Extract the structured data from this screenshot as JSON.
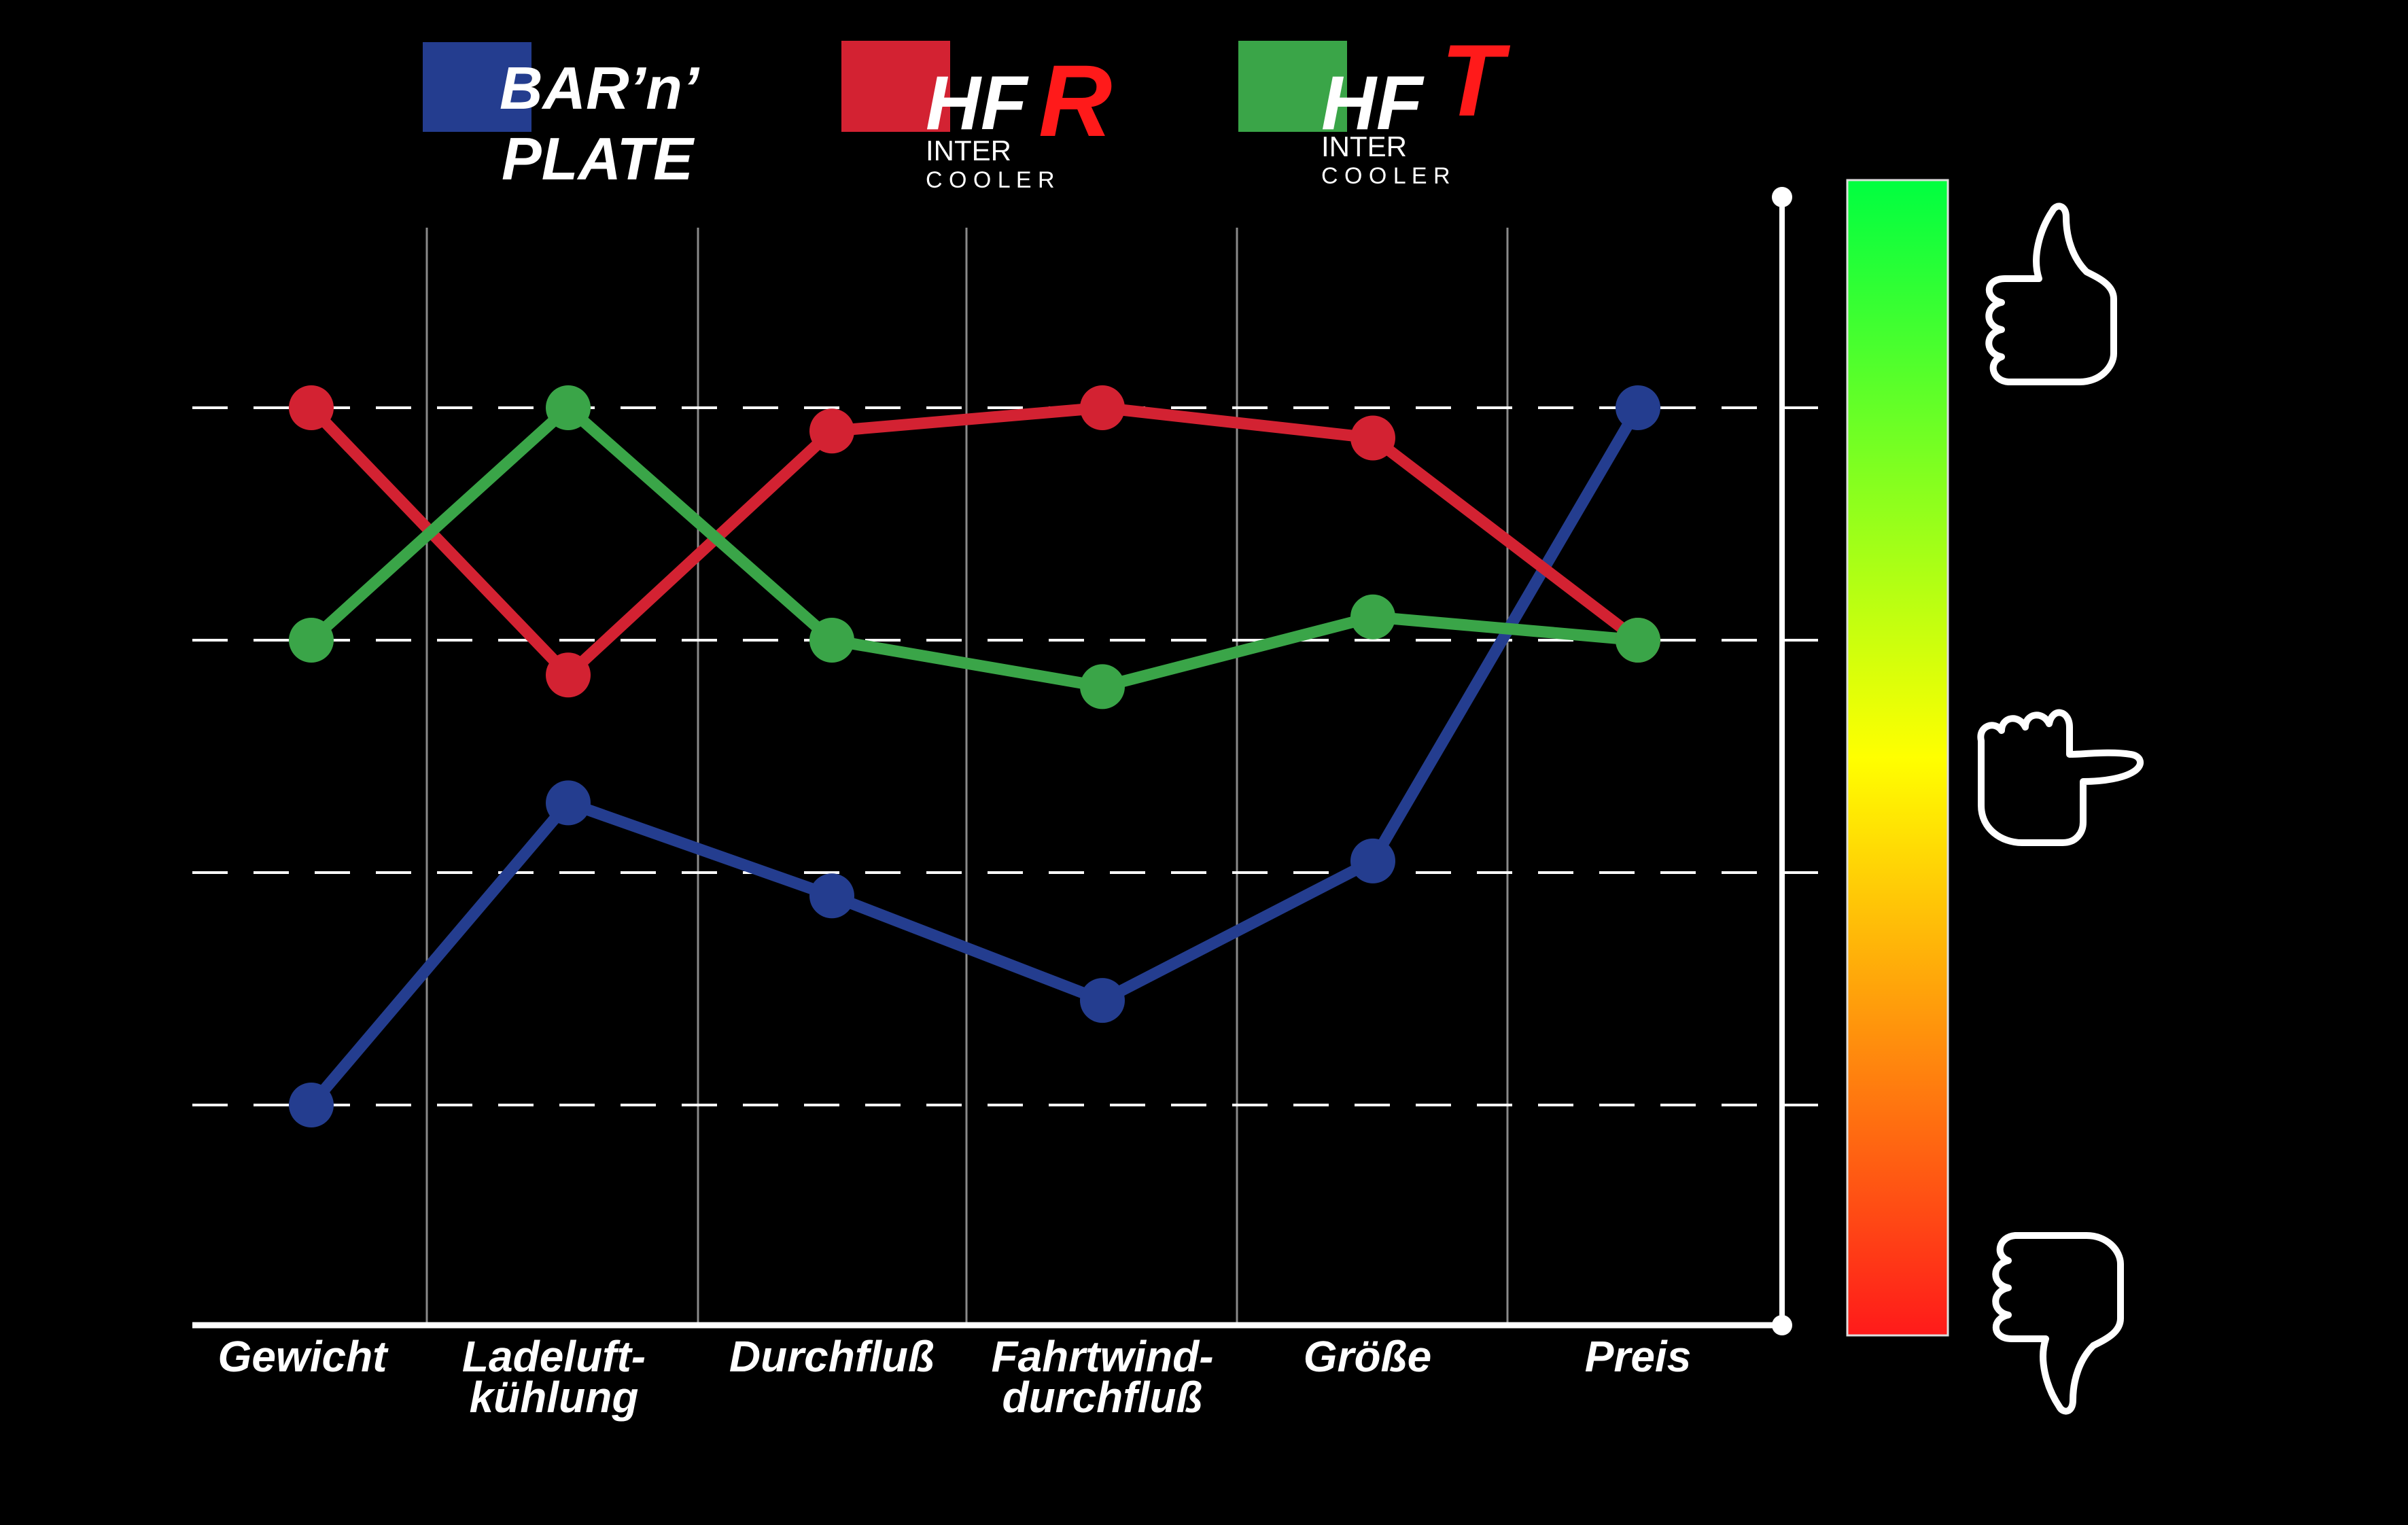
{
  "chart_data": {
    "type": "line",
    "categories": [
      [
        "Gewicht"
      ],
      [
        "Ladeluft-",
        "kühlung"
      ],
      [
        "Durchfluß"
      ],
      [
        "Fahrtwind-",
        "durchfluß"
      ],
      [
        "Größe"
      ],
      [
        "Preis"
      ]
    ],
    "series": [
      {
        "key": "barnplate",
        "color": "#243d8f",
        "values": [
          1.0,
          2.3,
          1.9,
          1.45,
          2.05,
          4.0
        ]
      },
      {
        "key": "hfr",
        "color": "#d32232",
        "values": [
          4.0,
          2.85,
          3.9,
          4.0,
          3.87,
          3.0
        ]
      },
      {
        "key": "hft",
        "color": "#3aa548",
        "values": [
          3.0,
          4.0,
          3.0,
          2.8,
          3.1,
          3.0
        ]
      }
    ],
    "ylim": [
      0,
      5
    ],
    "grid": "horizontal-dashed",
    "scale": {
      "type": "gradient",
      "top": "#00ff40",
      "middle": "#ffff00",
      "bottom": "#ff1a1a"
    }
  },
  "legend": {
    "barnplate": {
      "line1": "BAR’n’",
      "line2": "PLATE",
      "swatch": "#243d8f"
    },
    "hfr": {
      "main": "HF",
      "glyph": "R",
      "sub1": "INTER",
      "sub2": "C O O L E R",
      "swatch": "#d32232",
      "glyph_color": "#ff1a1a"
    },
    "hft": {
      "main": "HF",
      "glyph": "T",
      "sub1": "INTER",
      "sub2": "C O O L E R",
      "swatch": "#3aa548",
      "glyph_color": "#ff1a1a"
    }
  },
  "icons": [
    "thumbs-up-icon",
    "thumbs-sideways-icon",
    "thumbs-down-icon"
  ]
}
